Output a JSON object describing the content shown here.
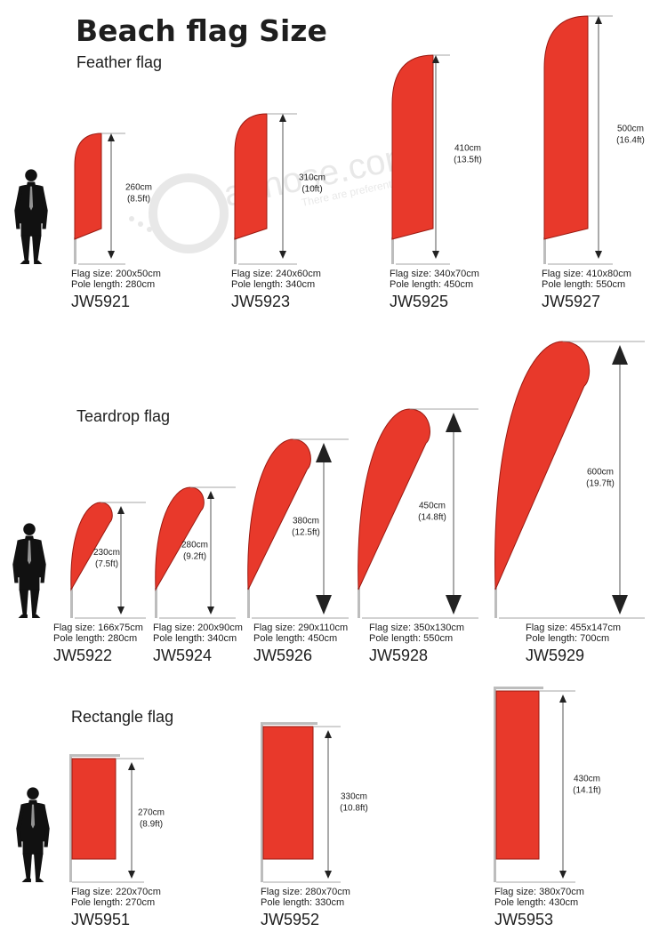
{
  "title": "Beach flag Size",
  "watermark": {
    "brand": "adnose.com",
    "tagline": "There are preferential"
  },
  "colors": {
    "flag": "#e8392b",
    "flag_edge": "#9a1a12",
    "pole": "#bdbdbd",
    "text": "#1e1e1e",
    "dim_line": "#555555"
  },
  "sections": [
    {
      "title": "Feather flag",
      "shape": "feather",
      "items": [
        {
          "model": "JW5921",
          "height": "260cm",
          "height_ft": "(8.5ft)",
          "flag_size": "Flag size: 200x50cm",
          "pole_length": "Pole length: 280cm"
        },
        {
          "model": "JW5923",
          "height": "310cm",
          "height_ft": "(10ft)",
          "flag_size": "Flag size: 240x60cm",
          "pole_length": "Pole length: 340cm"
        },
        {
          "model": "JW5925",
          "height": "410cm",
          "height_ft": "(13.5ft)",
          "flag_size": "Flag size: 340x70cm",
          "pole_length": "Pole length: 450cm"
        },
        {
          "model": "JW5927",
          "height": "500cm",
          "height_ft": "(16.4ft)",
          "flag_size": "Flag size: 410x80cm",
          "pole_length": "Pole length: 550cm"
        }
      ]
    },
    {
      "title": "Teardrop flag",
      "shape": "teardrop",
      "items": [
        {
          "model": "JW5922",
          "height": "230cm",
          "height_ft": "(7.5ft)",
          "flag_size": "Flag size: 166x75cm",
          "pole_length": "Pole length: 280cm"
        },
        {
          "model": "JW5924",
          "height": "280cm",
          "height_ft": "(9.2ft)",
          "flag_size": "Flag size: 200x90cm",
          "pole_length": "Pole length: 340cm"
        },
        {
          "model": "JW5926",
          "height": "380cm",
          "height_ft": "(12.5ft)",
          "flag_size": "Flag size: 290x110cm",
          "pole_length": "Pole length: 450cm"
        },
        {
          "model": "JW5928",
          "height": "450cm",
          "height_ft": "(14.8ft)",
          "flag_size": "Flag size: 350x130cm",
          "pole_length": "Pole length: 550cm"
        },
        {
          "model": "JW5929",
          "height": "600cm",
          "height_ft": "(19.7ft)",
          "flag_size": "Flag size: 455x147cm",
          "pole_length": "Pole length: 700cm"
        }
      ]
    },
    {
      "title": "Rectangle flag",
      "shape": "rectangle",
      "items": [
        {
          "model": "JW5951",
          "height": "270cm",
          "height_ft": "(8.9ft)",
          "flag_size": "Flag size: 220x70cm",
          "pole_length": "Pole length: 270cm"
        },
        {
          "model": "JW5952",
          "height": "330cm",
          "height_ft": "(10.8ft)",
          "flag_size": "Flag size: 280x70cm",
          "pole_length": "Pole length: 330cm"
        },
        {
          "model": "JW5953",
          "height": "430cm",
          "height_ft": "(14.1ft)",
          "flag_size": "Flag size: 380x70cm",
          "pole_length": "Pole length: 430cm"
        }
      ]
    }
  ]
}
